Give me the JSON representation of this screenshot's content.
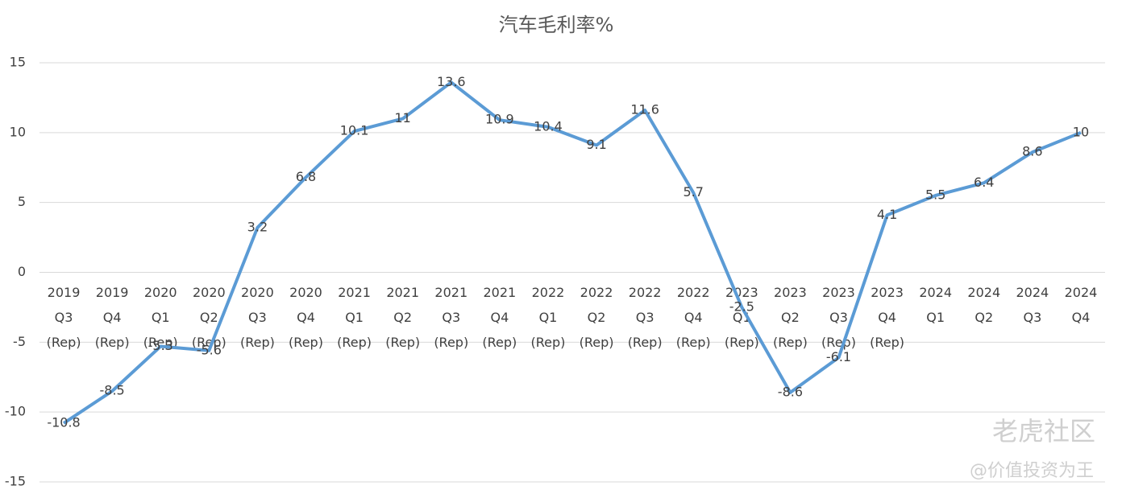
{
  "chart_data": {
    "type": "line",
    "title": "汽车毛利率%",
    "categories": [
      "2019\nQ3\n(Rep)",
      "2019\nQ4\n(Rep)",
      "2020\nQ1\n(Rep)",
      "2020\nQ2\n(Rep)",
      "2020\nQ3\n(Rep)",
      "2020\nQ4\n(Rep)",
      "2021\nQ1\n(Rep)",
      "2021\nQ2\n(Rep)",
      "2021\nQ3\n(Rep)",
      "2021\nQ4\n(Rep)",
      "2022\nQ1\n(Rep)",
      "2022\nQ2\n(Rep)",
      "2022\nQ3\n(Rep)",
      "2022\nQ4\n(Rep)",
      "2023\nQ1\n(Rep)",
      "2023\nQ2\n(Rep)",
      "2023\nQ3\n(Rep)",
      "2023\nQ4\n(Rep)",
      "2024\nQ1",
      "2024\nQ2",
      "2024\nQ3",
      "2024\nQ4"
    ],
    "values": [
      -10.8,
      -8.5,
      -5.3,
      -5.6,
      3.2,
      6.8,
      10.1,
      11,
      13.6,
      10.9,
      10.4,
      9.1,
      11.6,
      5.7,
      -2.5,
      -8.6,
      -6.1,
      4.1,
      5.5,
      6.4,
      8.6,
      10
    ],
    "color": "#5b9bd5",
    "ylim": [
      -15,
      15
    ],
    "yticks": [
      -15,
      -10,
      -5,
      0,
      5,
      10,
      15
    ],
    "grid": true,
    "watermark": [
      "老虎社区",
      "@价值投资为王"
    ]
  }
}
